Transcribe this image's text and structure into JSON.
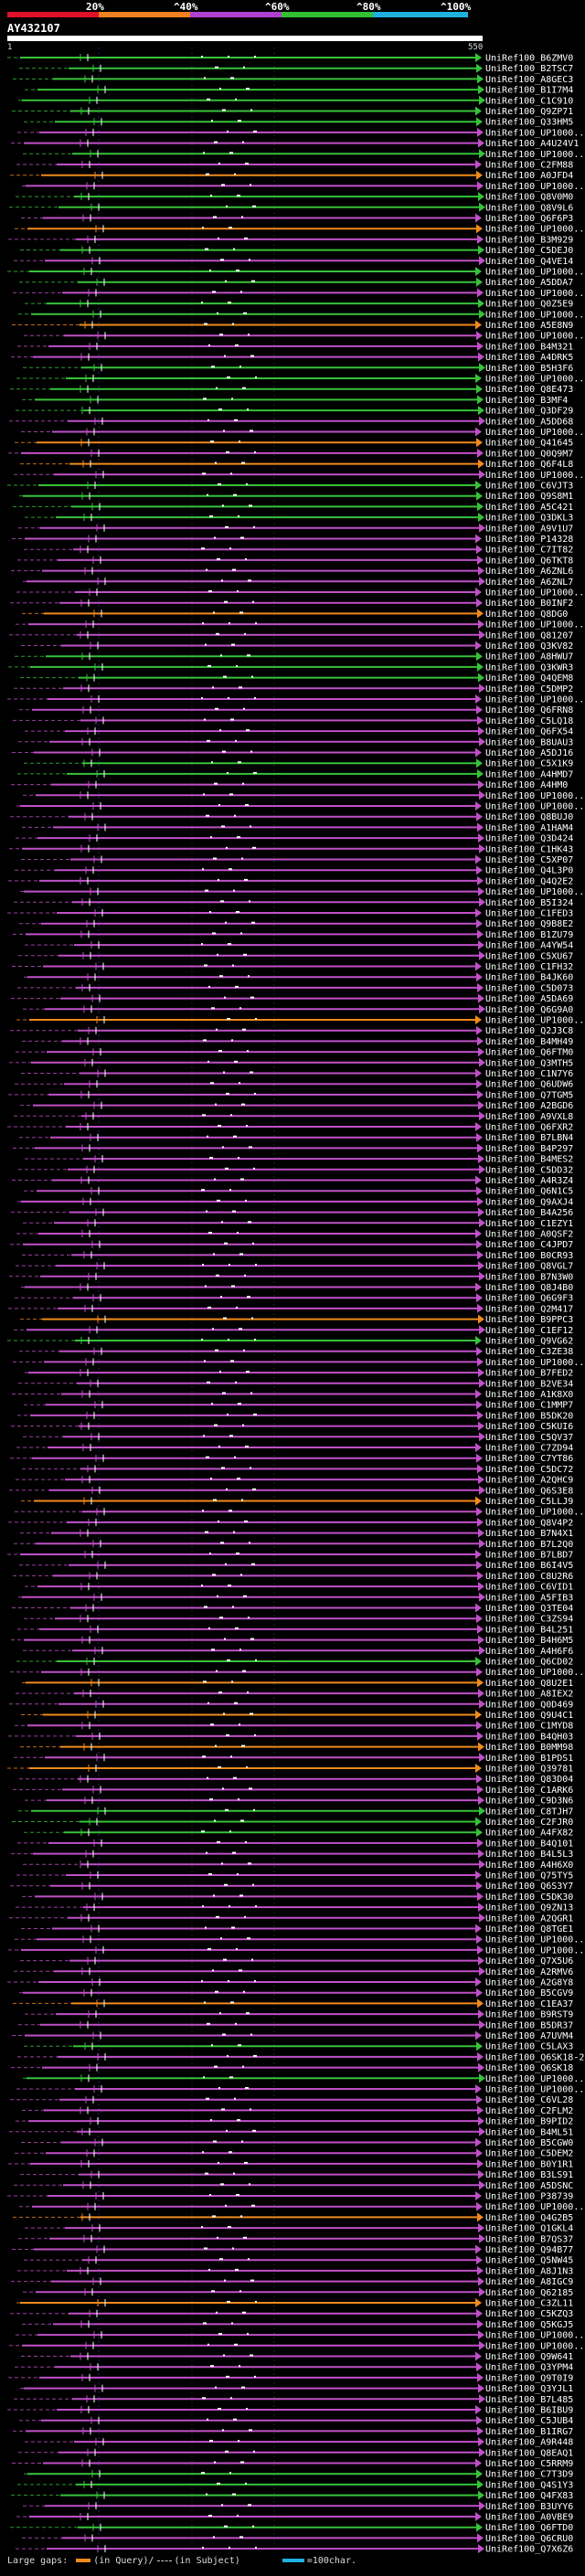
{
  "legend": {
    "percents": [
      "20%",
      "^40%",
      "^60%",
      "^80%",
      "^100%"
    ],
    "colors": [
      "#e0102a",
      "#f08020",
      "#b040d0",
      "#30c030",
      "#20b0e0"
    ]
  },
  "query": {
    "title": "AY432107",
    "start": "1",
    "end": "550"
  },
  "hit_colors": {
    "green": "#36c23a",
    "magenta": "#c050c8",
    "orange": "#f08a1e"
  },
  "hits": [
    {
      "label": "UniRef100_B6ZMV0",
      "color": "green"
    },
    {
      "label": "UniRef100_B2TSC7",
      "color": "green"
    },
    {
      "label": "UniRef100_A8GEC3",
      "color": "green"
    },
    {
      "label": "UniRef100_B1I7M4",
      "color": "green"
    },
    {
      "label": "UniRef100_C1C910",
      "color": "green"
    },
    {
      "label": "UniRef100_Q9ZP71",
      "color": "green"
    },
    {
      "label": "UniRef100_Q33HM5",
      "color": "green"
    },
    {
      "label": "UniRef100_UP1000...",
      "color": "magenta"
    },
    {
      "label": "UniRef100_A4U24V1",
      "color": "magenta"
    },
    {
      "label": "UniRef100_UP1000...",
      "color": "green"
    },
    {
      "label": "UniRef100_C2FM88",
      "color": "magenta"
    },
    {
      "label": "UniRef100_A0JFD4",
      "color": "orange"
    },
    {
      "label": "UniRef100_UP1000...",
      "color": "magenta"
    },
    {
      "label": "UniRef100_Q8V0M0",
      "color": "green"
    },
    {
      "label": "UniRef100_Q8V9L6",
      "color": "green"
    },
    {
      "label": "UniRef100_Q6F6P3",
      "color": "magenta"
    },
    {
      "label": "UniRef100_UP1000...",
      "color": "orange"
    },
    {
      "label": "UniRef100_B3M929",
      "color": "magenta"
    },
    {
      "label": "UniRef100_C5DEJ0",
      "color": "green"
    },
    {
      "label": "UniRef100_Q4VE14",
      "color": "magenta"
    },
    {
      "label": "UniRef100_UP1000...",
      "color": "green"
    },
    {
      "label": "UniRef100_A5DDA7",
      "color": "green"
    },
    {
      "label": "UniRef100_UP1000...",
      "color": "magenta"
    },
    {
      "label": "UniRef100_Q0Z5E9",
      "color": "green"
    },
    {
      "label": "UniRef100_UP1000...",
      "color": "green"
    },
    {
      "label": "UniRef100_A5E8N9",
      "color": "orange"
    },
    {
      "label": "UniRef100_UP1000...",
      "color": "magenta"
    },
    {
      "label": "UniRef100_B4M321",
      "color": "magenta"
    },
    {
      "label": "UniRef100_A4DRK5",
      "color": "magenta"
    },
    {
      "label": "UniRef100_B5H3F6",
      "color": "green"
    },
    {
      "label": "UniRef100_UP1000...",
      "color": "green"
    },
    {
      "label": "UniRef100_Q8E473",
      "color": "green"
    },
    {
      "label": "UniRef100_B3MF4",
      "color": "green"
    },
    {
      "label": "UniRef100_Q3DF29",
      "color": "green"
    },
    {
      "label": "UniRef100_A5DD68",
      "color": "magenta"
    },
    {
      "label": "UniRef100_UP1000...",
      "color": "magenta"
    },
    {
      "label": "UniRef100_Q41645",
      "color": "orange"
    },
    {
      "label": "UniRef100_Q0Q9M7",
      "color": "magenta"
    },
    {
      "label": "UniRef100_Q6F4L8",
      "color": "orange"
    },
    {
      "label": "UniRef100_UP1000...",
      "color": "magenta"
    },
    {
      "label": "UniRef100_C6VJT3",
      "color": "green"
    },
    {
      "label": "UniRef100_Q9S8M1",
      "color": "green"
    },
    {
      "label": "UniRef100_A5C421",
      "color": "green"
    },
    {
      "label": "UniRef100_Q3DKL3",
      "color": "green"
    },
    {
      "label": "UniRef100_A9V1U7",
      "color": "magenta"
    },
    {
      "label": "UniRef100_P14328",
      "color": "magenta"
    },
    {
      "label": "UniRef100_C7IT82",
      "color": "magenta"
    },
    {
      "label": "UniRef100_Q6TKT8",
      "color": "magenta"
    },
    {
      "label": "UniRef100_A6ZNL6",
      "color": "magenta"
    },
    {
      "label": "UniRef100_A6ZNL7",
      "color": "magenta"
    },
    {
      "label": "UniRef100_UP1000...",
      "color": "magenta"
    },
    {
      "label": "UniRef100_B0INF2",
      "color": "magenta"
    },
    {
      "label": "UniRef100_Q8DG0",
      "color": "orange"
    },
    {
      "label": "UniRef100_UP1000...",
      "color": "magenta"
    },
    {
      "label": "UniRef100_Q81207",
      "color": "magenta"
    },
    {
      "label": "UniRef100_Q3KV82",
      "color": "magenta"
    },
    {
      "label": "UniRef100_A8HWU7",
      "color": "green"
    },
    {
      "label": "UniRef100_Q3KWR3",
      "color": "green"
    },
    {
      "label": "UniRef100_Q4QEM8",
      "color": "green"
    },
    {
      "label": "UniRef100_C5DMP2",
      "color": "magenta"
    },
    {
      "label": "UniRef100_UP1000...",
      "color": "magenta"
    },
    {
      "label": "UniRef100_Q6FRN8",
      "color": "magenta"
    },
    {
      "label": "UniRef100_C5LQ18",
      "color": "magenta"
    },
    {
      "label": "UniRef100_Q6FX54",
      "color": "magenta"
    },
    {
      "label": "UniRef100_B8UAU3",
      "color": "magenta"
    },
    {
      "label": "UniRef100_A5DJ16",
      "color": "magenta"
    },
    {
      "label": "UniRef100_C5X1K9",
      "color": "green"
    },
    {
      "label": "UniRef100_A4HMD7",
      "color": "green"
    },
    {
      "label": "UniRef100_A4HM0",
      "color": "magenta"
    },
    {
      "label": "UniRef100_UP1000...",
      "color": "magenta"
    },
    {
      "label": "UniRef100_UP1000...",
      "color": "magenta"
    },
    {
      "label": "UniRef100_Q8BUJ0",
      "color": "magenta"
    },
    {
      "label": "UniRef100_A1HAM4",
      "color": "magenta"
    },
    {
      "label": "UniRef100_Q3D424",
      "color": "magenta"
    },
    {
      "label": "UniRef100_C1HK43",
      "color": "magenta"
    },
    {
      "label": "UniRef100_C5XP07",
      "color": "magenta"
    },
    {
      "label": "UniRef100_Q4L3P0",
      "color": "magenta"
    },
    {
      "label": "UniRef100_Q4Q2E2",
      "color": "magenta"
    },
    {
      "label": "UniRef100_UP1000...",
      "color": "magenta"
    },
    {
      "label": "UniRef100_B5I324",
      "color": "magenta"
    },
    {
      "label": "UniRef100_C1FED3",
      "color": "magenta"
    },
    {
      "label": "UniRef100_Q9B8E2",
      "color": "magenta"
    },
    {
      "label": "UniRef100_B1ZU79",
      "color": "magenta"
    },
    {
      "label": "UniRef100_A4YW54",
      "color": "magenta"
    },
    {
      "label": "UniRef100_C5XU67",
      "color": "magenta"
    },
    {
      "label": "UniRef100_C1FH32",
      "color": "magenta"
    },
    {
      "label": "UniRef100_B4JK60",
      "color": "magenta"
    },
    {
      "label": "UniRef100_C5D073",
      "color": "magenta"
    },
    {
      "label": "UniRef100_A5DA69",
      "color": "magenta"
    },
    {
      "label": "UniRef100_Q6G9A0",
      "color": "magenta"
    },
    {
      "label": "UniRef100_UP1000...",
      "color": "orange"
    },
    {
      "label": "UniRef100_Q2J3C8",
      "color": "magenta"
    },
    {
      "label": "UniRef100_B4MH49",
      "color": "magenta"
    },
    {
      "label": "UniRef100_Q6FTM0",
      "color": "magenta"
    },
    {
      "label": "UniRef100_Q3MTH5",
      "color": "magenta"
    },
    {
      "label": "UniRef100_C1N7Y6",
      "color": "magenta"
    },
    {
      "label": "UniRef100_Q6UDW6",
      "color": "magenta"
    },
    {
      "label": "UniRef100_Q7TGM5",
      "color": "magenta"
    },
    {
      "label": "UniRef100_A2BGD6",
      "color": "magenta"
    },
    {
      "label": "UniRef100_A9VXL8",
      "color": "magenta"
    },
    {
      "label": "UniRef100_Q6FXR2",
      "color": "magenta"
    },
    {
      "label": "UniRef100_B7LBN4",
      "color": "magenta"
    },
    {
      "label": "UniRef100_B4P297",
      "color": "magenta"
    },
    {
      "label": "UniRef100_B4MES2",
      "color": "magenta"
    },
    {
      "label": "UniRef100_C5DD32",
      "color": "magenta"
    },
    {
      "label": "UniRef100_A4R3Z4",
      "color": "magenta"
    },
    {
      "label": "UniRef100_Q6N1C5",
      "color": "magenta"
    },
    {
      "label": "UniRef100_Q9AXJ4",
      "color": "magenta"
    },
    {
      "label": "UniRef100_B4A256",
      "color": "magenta"
    },
    {
      "label": "UniRef100_C1EZY1",
      "color": "magenta"
    },
    {
      "label": "UniRef100_A0QSF2",
      "color": "magenta"
    },
    {
      "label": "UniRef100_C4JPD7",
      "color": "magenta"
    },
    {
      "label": "UniRef100_B0CR93",
      "color": "magenta"
    },
    {
      "label": "UniRef100_Q8VGL7",
      "color": "magenta"
    },
    {
      "label": "UniRef100_B7N3W0",
      "color": "magenta"
    },
    {
      "label": "UniRef100_Q8J4B0",
      "color": "magenta"
    },
    {
      "label": "UniRef100_Q6G9F3",
      "color": "magenta"
    },
    {
      "label": "UniRef100_Q2M417",
      "color": "magenta"
    },
    {
      "label": "UniRef100_B9PPC3",
      "color": "orange"
    },
    {
      "label": "UniRef100_C1EF12",
      "color": "magenta"
    },
    {
      "label": "UniRef100_Q9VG62",
      "color": "green"
    },
    {
      "label": "UniRef100_C3ZE38",
      "color": "magenta"
    },
    {
      "label": "UniRef100_UP1000...",
      "color": "magenta"
    },
    {
      "label": "UniRef100_B7FED2",
      "color": "magenta"
    },
    {
      "label": "UniRef100_B2VE34",
      "color": "magenta"
    },
    {
      "label": "UniRef100_A1K8X0",
      "color": "magenta"
    },
    {
      "label": "UniRef100_C1MMP7",
      "color": "magenta"
    },
    {
      "label": "UniRef100_B5DK20",
      "color": "magenta"
    },
    {
      "label": "UniRef100_C5KUI6",
      "color": "magenta"
    },
    {
      "label": "UniRef100_C5QV37",
      "color": "magenta"
    },
    {
      "label": "UniRef100_C7ZD94",
      "color": "magenta"
    },
    {
      "label": "UniRef100_C7YT86",
      "color": "magenta"
    },
    {
      "label": "UniRef100_C5DC72",
      "color": "magenta"
    },
    {
      "label": "UniRef100_A2QHC9",
      "color": "magenta"
    },
    {
      "label": "UniRef100_Q6S3E8",
      "color": "magenta"
    },
    {
      "label": "UniRef100_C5LLJ9",
      "color": "orange"
    },
    {
      "label": "UniRef100_UP1000...",
      "color": "magenta"
    },
    {
      "label": "UniRef100_Q8V4P2",
      "color": "magenta"
    },
    {
      "label": "UniRef100_B7N4X1",
      "color": "magenta"
    },
    {
      "label": "UniRef100_B7L2Q0",
      "color": "magenta"
    },
    {
      "label": "UniRef100_B7LBD7",
      "color": "magenta"
    },
    {
      "label": "UniRef100_B6I4V5",
      "color": "magenta"
    },
    {
      "label": "UniRef100_C8U2R6",
      "color": "magenta"
    },
    {
      "label": "UniRef100_C6VID1",
      "color": "magenta"
    },
    {
      "label": "UniRef100_A5FIB3",
      "color": "magenta"
    },
    {
      "label": "UniRef100_Q3TE04",
      "color": "magenta"
    },
    {
      "label": "UniRef100_C3ZS94",
      "color": "magenta"
    },
    {
      "label": "UniRef100_B4L251",
      "color": "magenta"
    },
    {
      "label": "UniRef100_B4H6M5",
      "color": "magenta"
    },
    {
      "label": "UniRef100_A4H6F6",
      "color": "magenta"
    },
    {
      "label": "UniRef100_Q6CD02",
      "color": "green"
    },
    {
      "label": "UniRef100_UP1000...",
      "color": "magenta"
    },
    {
      "label": "UniRef100_Q8U2E1",
      "color": "orange"
    },
    {
      "label": "UniRef100_A8IEX2",
      "color": "magenta"
    },
    {
      "label": "UniRef100_Q0D469",
      "color": "magenta"
    },
    {
      "label": "UniRef100_Q9U4C1",
      "color": "orange"
    },
    {
      "label": "UniRef100_C1MYD8",
      "color": "magenta"
    },
    {
      "label": "UniRef100_B4QH03",
      "color": "magenta"
    },
    {
      "label": "UniRef100_B0MM98",
      "color": "orange"
    },
    {
      "label": "UniRef100_B1PDS1",
      "color": "magenta"
    },
    {
      "label": "UniRef100_Q39781",
      "color": "orange"
    },
    {
      "label": "UniRef100_Q83D04",
      "color": "magenta"
    },
    {
      "label": "UniRef100_C1ARK6",
      "color": "magenta"
    },
    {
      "label": "UniRef100_C9D3N6",
      "color": "magenta"
    },
    {
      "label": "UniRef100_C8TJH7",
      "color": "green"
    },
    {
      "label": "UniRef100_C2FJR0",
      "color": "green"
    },
    {
      "label": "UniRef100_A4FX82",
      "color": "green"
    },
    {
      "label": "UniRef100_B4Q101",
      "color": "magenta"
    },
    {
      "label": "UniRef100_B4L5L3",
      "color": "magenta"
    },
    {
      "label": "UniRef100_A4H6X0",
      "color": "magenta"
    },
    {
      "label": "UniRef100_Q75TY5",
      "color": "magenta"
    },
    {
      "label": "UniRef100_Q6S3Y7",
      "color": "magenta"
    },
    {
      "label": "UniRef100_C5DK30",
      "color": "magenta"
    },
    {
      "label": "UniRef100_Q9ZN13",
      "color": "magenta"
    },
    {
      "label": "UniRef100_A2QGR1",
      "color": "magenta"
    },
    {
      "label": "UniRef100_Q8TGE1",
      "color": "magenta"
    },
    {
      "label": "UniRef100_UP1000...",
      "color": "magenta"
    },
    {
      "label": "UniRef100_UP1000...",
      "color": "magenta"
    },
    {
      "label": "UniRef100_Q7X5U6",
      "color": "magenta"
    },
    {
      "label": "UniRef100_A2RMV6",
      "color": "magenta"
    },
    {
      "label": "UniRef100_A2G8Y8",
      "color": "magenta"
    },
    {
      "label": "UniRef100_B5CGV9",
      "color": "magenta"
    },
    {
      "label": "UniRef100_C1EA37",
      "color": "orange"
    },
    {
      "label": "UniRef100_B9RST9",
      "color": "magenta"
    },
    {
      "label": "UniRef100_B5DR37",
      "color": "magenta"
    },
    {
      "label": "UniRef100_A7UVM4",
      "color": "magenta"
    },
    {
      "label": "UniRef100_C5LAX3",
      "color": "green"
    },
    {
      "label": "UniRef100_Q6SK18-2",
      "color": "magenta"
    },
    {
      "label": "UniRef100_Q6SK18",
      "color": "magenta"
    },
    {
      "label": "UniRef100_UP1000...",
      "color": "green"
    },
    {
      "label": "UniRef100_UP1000...",
      "color": "magenta"
    },
    {
      "label": "UniRef100_C6VL28",
      "color": "magenta"
    },
    {
      "label": "UniRef100_C2FLM2",
      "color": "magenta"
    },
    {
      "label": "UniRef100_B9PID2",
      "color": "magenta"
    },
    {
      "label": "UniRef100_B4ML51",
      "color": "magenta"
    },
    {
      "label": "UniRef100_B5CGW0",
      "color": "magenta"
    },
    {
      "label": "UniRef100_C5DEM2",
      "color": "magenta"
    },
    {
      "label": "UniRef100_B0Y1R1",
      "color": "magenta"
    },
    {
      "label": "UniRef100_B3LS91",
      "color": "magenta"
    },
    {
      "label": "UniRef100_A5DSNC",
      "color": "magenta"
    },
    {
      "label": "UniRef100_P38739",
      "color": "magenta"
    },
    {
      "label": "UniRef100_UP1000...",
      "color": "magenta"
    },
    {
      "label": "UniRef100_Q4G2B5",
      "color": "orange"
    },
    {
      "label": "UniRef100_Q1GKL4",
      "color": "magenta"
    },
    {
      "label": "UniRef100_B7QS37",
      "color": "magenta"
    },
    {
      "label": "UniRef100_Q94B77",
      "color": "magenta"
    },
    {
      "label": "UniRef100_Q5NW45",
      "color": "magenta"
    },
    {
      "label": "UniRef100_A8J1N3",
      "color": "magenta"
    },
    {
      "label": "UniRef100_A8IGC9",
      "color": "magenta"
    },
    {
      "label": "UniRef100_Q62185",
      "color": "magenta"
    },
    {
      "label": "UniRef100_C3ZL11",
      "color": "orange"
    },
    {
      "label": "UniRef100_C5KZQ3",
      "color": "magenta"
    },
    {
      "label": "UniRef100_Q5KGJ5",
      "color": "magenta"
    },
    {
      "label": "UniRef100_UP1000...",
      "color": "magenta"
    },
    {
      "label": "UniRef100_UP1000...",
      "color": "magenta"
    },
    {
      "label": "UniRef100_Q9W641",
      "color": "magenta"
    },
    {
      "label": "UniRef100_Q3YPM4",
      "color": "magenta"
    },
    {
      "label": "UniRef100_Q9T0I9",
      "color": "magenta"
    },
    {
      "label": "UniRef100_Q3YJL1",
      "color": "magenta"
    },
    {
      "label": "UniRef100_B7L485",
      "color": "magenta"
    },
    {
      "label": "UniRef100_B6IBU9",
      "color": "magenta"
    },
    {
      "label": "UniRef100_C5JUB4",
      "color": "magenta"
    },
    {
      "label": "UniRef100_B1IRG7",
      "color": "magenta"
    },
    {
      "label": "UniRef100_A9R448",
      "color": "magenta"
    },
    {
      "label": "UniRef100_Q8EAQ1",
      "color": "magenta"
    },
    {
      "label": "UniRef100_C5RRM9",
      "color": "magenta"
    },
    {
      "label": "UniRef100_C7T3D9",
      "color": "green"
    },
    {
      "label": "UniRef100_Q4S1Y3",
      "color": "green"
    },
    {
      "label": "UniRef100_Q4FX83",
      "color": "green"
    },
    {
      "label": "UniRef100_B3UYY6",
      "color": "magenta"
    },
    {
      "label": "UniRef100_A0VBE9",
      "color": "magenta"
    },
    {
      "label": "UniRef100_Q6FTD0",
      "color": "green"
    },
    {
      "label": "UniRef100_Q6CRU0",
      "color": "magenta"
    },
    {
      "label": "UniRef100_Q7X6Z6",
      "color": "magenta"
    }
  ],
  "footer": {
    "large_gaps": "Large gaps:",
    "in_query": "(in Query)",
    "slash": "/",
    "in_subject": "(in Subject)",
    "scale": "=100char."
  }
}
